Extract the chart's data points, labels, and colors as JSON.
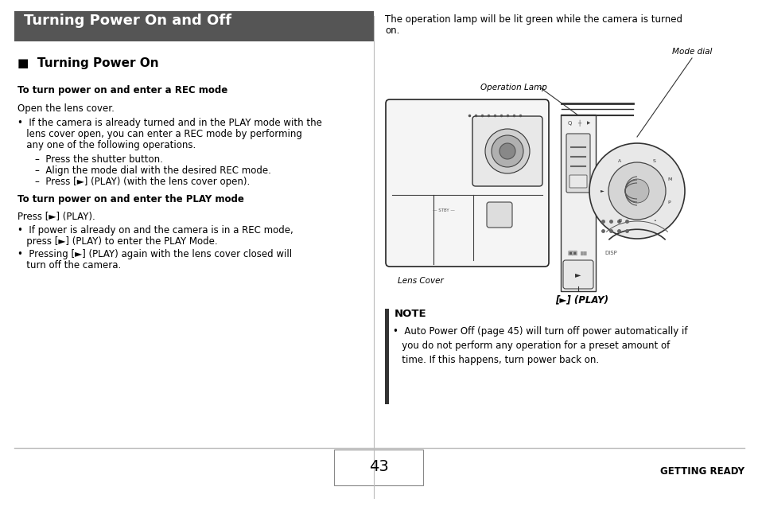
{
  "page_bg": "#ffffff",
  "title_bg": "#555555",
  "title_text": "Turning Power On and Off",
  "title_text_color": "#ffffff",
  "title_fontsize": 13,
  "body_fontsize": 8.5,
  "small_fontsize": 7.5,
  "note_label_fontsize": 9.5,
  "section_header_color": "#000000",
  "body_text_color": "#000000",
  "divider_color": "#bbbbbb",
  "page_number": "43",
  "footer_right": "GETTING READY",
  "content": {
    "section_heading": "■  Turning Power On",
    "sub_heading1": "To turn power on and enter a REC mode",
    "para1": "Open the lens cover.",
    "bullet1a": "•  If the camera is already turned and in the PLAY mode with the",
    "bullet1b": "   lens cover open, you can enter a REC mode by performing",
    "bullet1c": "   any one of the following operations.",
    "dash1": "–  Press the shutter button.",
    "dash2": "–  Align the mode dial with the desired REC mode.",
    "dash3": "–  Press [►] (PLAY) (with the lens cover open).",
    "sub_heading2": "To turn power on and enter the PLAY mode",
    "para2": "Press [►] (PLAY).",
    "bullet2a": "•  If power is already on and the camera is in a REC mode,",
    "bullet2b": "   press [►] (PLAY) to enter the PLAY Mode.",
    "bullet3a": "•  Pressing [►] (PLAY) again with the lens cover closed will",
    "bullet3b": "   turn off the camera.",
    "right_para1": "The operation lamp will be lit green while the camera is turned",
    "right_para2": "on.",
    "label_op_lamp": "Operation Lamp",
    "label_mode_dial": "Mode dial",
    "label_lens_cover": "Lens Cover",
    "label_play": "[►] (PLAY)",
    "note_label": "NOTE",
    "note_bullet": "•  Auto Power Off (page 45) will turn off power automatically if\n   you do not perform any operation for a preset amount of\n   time. If this happens, turn power back on."
  }
}
